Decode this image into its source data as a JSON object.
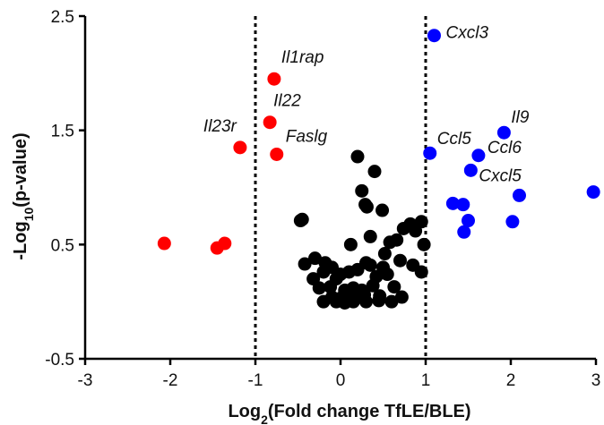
{
  "chart_data": {
    "type": "scatter",
    "xlabel": "Log2(Fold change TfLE/BLE)",
    "ylabel": "-Log10(p-value)",
    "xlim": [
      -3,
      3
    ],
    "ylim": [
      -0.5,
      2.5
    ],
    "x_ticks": [
      -3,
      -2,
      -1,
      0,
      1,
      2,
      3
    ],
    "y_ticks": [
      -0.5,
      0.5,
      1.5,
      2.5
    ],
    "y_tick_labels": [
      "-0.5",
      "0.5",
      "1.5",
      "2.5"
    ],
    "thresholds_x": [
      -1,
      1
    ],
    "grid": false,
    "colors": {
      "down": "#ff0000",
      "neutral": "#000000",
      "up": "#0000ff"
    },
    "series": [
      {
        "color_key": "down",
        "points": [
          {
            "x": -0.78,
            "y": 1.95,
            "label": "Il1rap"
          },
          {
            "x": -0.83,
            "y": 1.57,
            "label": "Il22"
          },
          {
            "x": -1.18,
            "y": 1.35,
            "label": "Il23r"
          },
          {
            "x": -0.75,
            "y": 1.29,
            "label": "Faslg"
          },
          {
            "x": -2.07,
            "y": 0.51
          },
          {
            "x": -1.45,
            "y": 0.47
          },
          {
            "x": -1.36,
            "y": 0.51
          }
        ]
      },
      {
        "color_key": "up",
        "points": [
          {
            "x": 1.1,
            "y": 2.33,
            "label": "Cxcl3"
          },
          {
            "x": 1.05,
            "y": 1.3,
            "label": "Ccl5"
          },
          {
            "x": 1.92,
            "y": 1.48,
            "label": "Il9"
          },
          {
            "x": 1.62,
            "y": 1.28,
            "label": "Ccl6"
          },
          {
            "x": 1.53,
            "y": 1.15,
            "label": "Cxcl5"
          },
          {
            "x": 2.1,
            "y": 0.93
          },
          {
            "x": 2.97,
            "y": 0.96
          },
          {
            "x": 1.32,
            "y": 0.86
          },
          {
            "x": 1.44,
            "y": 0.85
          },
          {
            "x": 1.5,
            "y": 0.71
          },
          {
            "x": 2.02,
            "y": 0.7
          },
          {
            "x": 1.45,
            "y": 0.61
          }
        ]
      },
      {
        "color_key": "neutral",
        "points": [
          {
            "x": 0.2,
            "y": 1.27
          },
          {
            "x": 0.4,
            "y": 1.14
          },
          {
            "x": 0.25,
            "y": 0.97
          },
          {
            "x": 0.29,
            "y": 0.85
          },
          {
            "x": 0.31,
            "y": 0.83
          },
          {
            "x": 0.49,
            "y": 0.8
          },
          {
            "x": -0.45,
            "y": 0.72
          },
          {
            "x": -0.47,
            "y": 0.71
          },
          {
            "x": 0.95,
            "y": 0.7
          },
          {
            "x": 0.82,
            "y": 0.68
          },
          {
            "x": 0.74,
            "y": 0.64
          },
          {
            "x": 0.88,
            "y": 0.62
          },
          {
            "x": 0.66,
            "y": 0.54
          },
          {
            "x": 0.35,
            "y": 0.57
          },
          {
            "x": 0.58,
            "y": 0.52
          },
          {
            "x": 0.98,
            "y": 0.5
          },
          {
            "x": 0.12,
            "y": 0.5
          },
          {
            "x": 0.52,
            "y": 0.42
          },
          {
            "x": -0.3,
            "y": 0.38
          },
          {
            "x": -0.18,
            "y": 0.34
          },
          {
            "x": -0.42,
            "y": 0.33
          },
          {
            "x": -0.1,
            "y": 0.3
          },
          {
            "x": -0.2,
            "y": 0.26
          },
          {
            "x": 0.3,
            "y": 0.34
          },
          {
            "x": 0.35,
            "y": 0.32
          },
          {
            "x": 0.5,
            "y": 0.3
          },
          {
            "x": 0.7,
            "y": 0.36
          },
          {
            "x": 0.95,
            "y": 0.26
          },
          {
            "x": 0.85,
            "y": 0.32
          },
          {
            "x": -0.32,
            "y": 0.2
          },
          {
            "x": -0.05,
            "y": 0.2
          },
          {
            "x": 0.0,
            "y": 0.24
          },
          {
            "x": 0.1,
            "y": 0.26
          },
          {
            "x": 0.2,
            "y": 0.28
          },
          {
            "x": 0.42,
            "y": 0.22
          },
          {
            "x": 0.55,
            "y": 0.24
          },
          {
            "x": -0.25,
            "y": 0.12
          },
          {
            "x": -0.12,
            "y": 0.13
          },
          {
            "x": 0.05,
            "y": 0.1
          },
          {
            "x": 0.15,
            "y": 0.12
          },
          {
            "x": 0.25,
            "y": 0.1
          },
          {
            "x": 0.38,
            "y": 0.14
          },
          {
            "x": 0.63,
            "y": 0.13
          },
          {
            "x": -0.1,
            "y": 0.04
          },
          {
            "x": 0.0,
            "y": 0.03
          },
          {
            "x": 0.1,
            "y": 0.03
          },
          {
            "x": 0.2,
            "y": 0.04
          },
          {
            "x": 0.28,
            "y": 0.06
          },
          {
            "x": 0.46,
            "y": 0.05
          },
          {
            "x": -0.2,
            "y": 0.0
          },
          {
            "x": -0.05,
            "y": 0.0
          },
          {
            "x": 0.05,
            "y": -0.01
          },
          {
            "x": 0.15,
            "y": 0.0
          },
          {
            "x": 0.3,
            "y": 0.0
          },
          {
            "x": 0.45,
            "y": 0.01
          },
          {
            "x": 0.6,
            "y": 0.0
          },
          {
            "x": 0.72,
            "y": 0.04
          }
        ]
      }
    ]
  }
}
